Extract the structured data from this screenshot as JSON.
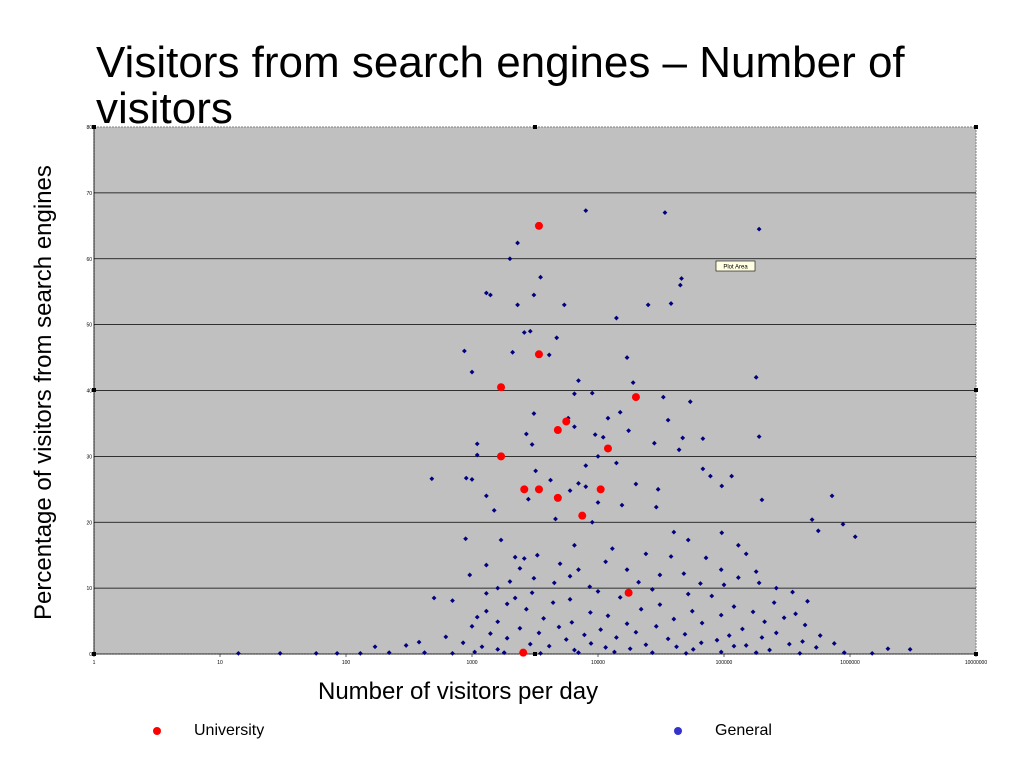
{
  "slide": {
    "title": "Visitors from search engines – Number of visitors"
  },
  "chart_data": {
    "type": "scatter",
    "xlabel": "Number of visitors per day",
    "ylabel": "Percentage of visitors from search engines",
    "xscale": "log",
    "xlim": [
      1,
      10000000
    ],
    "ylim": [
      0,
      80
    ],
    "x_tick_labels": [
      "1",
      "10",
      "100",
      "1000",
      "10000",
      "100000",
      "1000000",
      "10000000"
    ],
    "y_tick_labels": [
      "0",
      "10",
      "20",
      "30",
      "40",
      "50",
      "60",
      "70",
      "80"
    ],
    "grid": "horizontal",
    "plot_background": "#c0c0c0",
    "tooltip": "Plot Area",
    "legend_position": "bottom",
    "series": [
      {
        "name": "University",
        "color": "#ff0000",
        "points": [
          [
            3400,
            65
          ],
          [
            3400,
            45.5
          ],
          [
            1700,
            40.5
          ],
          [
            20000,
            39
          ],
          [
            5600,
            35.3
          ],
          [
            4800,
            34
          ],
          [
            12000,
            31.2
          ],
          [
            1700,
            30
          ],
          [
            2600,
            25
          ],
          [
            3400,
            25
          ],
          [
            10500,
            25
          ],
          [
            4800,
            23.7
          ],
          [
            7500,
            21
          ],
          [
            17500,
            9.3
          ],
          [
            2550,
            0.2
          ]
        ]
      },
      {
        "name": "General",
        "color": "#000080",
        "points": [
          [
            8000,
            67.3
          ],
          [
            34000,
            67
          ],
          [
            190000,
            64.5
          ],
          [
            2300,
            62.4
          ],
          [
            2000,
            60
          ],
          [
            3500,
            57.2
          ],
          [
            46000,
            57
          ],
          [
            45000,
            56
          ],
          [
            1300,
            54.8
          ],
          [
            1400,
            54.5
          ],
          [
            3100,
            54.5
          ],
          [
            2300,
            53
          ],
          [
            5400,
            53
          ],
          [
            25000,
            53
          ],
          [
            38000,
            53.2
          ],
          [
            14000,
            51
          ],
          [
            2900,
            49
          ],
          [
            2600,
            48.8
          ],
          [
            4700,
            48
          ],
          [
            870,
            46
          ],
          [
            2100,
            45.8
          ],
          [
            4100,
            45.4
          ],
          [
            17000,
            45
          ],
          [
            1000,
            42.8
          ],
          [
            180000,
            42
          ],
          [
            7000,
            41.5
          ],
          [
            19000,
            41.2
          ],
          [
            9000,
            39.6
          ],
          [
            6500,
            39.5
          ],
          [
            54000,
            38.3
          ],
          [
            33000,
            39
          ],
          [
            3100,
            36.5
          ],
          [
            15000,
            36.7
          ],
          [
            5800,
            35.8
          ],
          [
            6500,
            34.5
          ],
          [
            12000,
            35.8
          ],
          [
            36000,
            35.5
          ],
          [
            17500,
            33.9
          ],
          [
            9500,
            33.3
          ],
          [
            2700,
            33.4
          ],
          [
            11000,
            32.9
          ],
          [
            68000,
            32.7
          ],
          [
            47000,
            32.8
          ],
          [
            28000,
            32
          ],
          [
            190000,
            33
          ],
          [
            1100,
            31.9
          ],
          [
            3000,
            31.8
          ],
          [
            10000,
            30
          ],
          [
            44000,
            31
          ],
          [
            1100,
            30.2
          ],
          [
            8000,
            28.6
          ],
          [
            3200,
            27.8
          ],
          [
            14000,
            29
          ],
          [
            68000,
            28.1
          ],
          [
            78000,
            27
          ],
          [
            900,
            26.7
          ],
          [
            1000,
            26.5
          ],
          [
            4200,
            26.4
          ],
          [
            7000,
            25.9
          ],
          [
            20000,
            25.8
          ],
          [
            115000,
            27
          ],
          [
            480,
            26.6
          ],
          [
            8000,
            25.4
          ],
          [
            30000,
            25
          ],
          [
            96000,
            25.5
          ],
          [
            6000,
            24.8
          ],
          [
            1300,
            24
          ],
          [
            2800,
            23.5
          ],
          [
            10000,
            23
          ],
          [
            200000,
            23.4
          ],
          [
            15500,
            22.6
          ],
          [
            29000,
            22.3
          ],
          [
            1500,
            21.8
          ],
          [
            4600,
            20.5
          ],
          [
            9000,
            20
          ],
          [
            720000,
            24
          ],
          [
            500000,
            20.4
          ],
          [
            880000,
            19.7
          ],
          [
            40000,
            18.5
          ],
          [
            96000,
            18.4
          ],
          [
            1100000,
            17.8
          ],
          [
            560000,
            18.7
          ],
          [
            890,
            17.5
          ],
          [
            1700,
            17.3
          ],
          [
            6500,
            16.5
          ],
          [
            13000,
            16
          ],
          [
            3300,
            15
          ],
          [
            52000,
            17.3
          ],
          [
            130000,
            16.5
          ],
          [
            2200,
            14.7
          ],
          [
            2600,
            14.5
          ],
          [
            5000,
            13.7
          ],
          [
            7000,
            12.8
          ],
          [
            11500,
            14
          ],
          [
            24000,
            15.2
          ],
          [
            38000,
            14.8
          ],
          [
            72000,
            14.6
          ],
          [
            150000,
            15.2
          ],
          [
            1300,
            13.5
          ],
          [
            2400,
            13
          ],
          [
            17000,
            12.8
          ],
          [
            31000,
            12
          ],
          [
            95000,
            12.8
          ],
          [
            180000,
            12.5
          ],
          [
            960,
            12
          ],
          [
            6000,
            11.8
          ],
          [
            48000,
            12.2
          ],
          [
            130000,
            11.6
          ],
          [
            3100,
            11.5
          ],
          [
            2000,
            11
          ],
          [
            4500,
            10.8
          ],
          [
            21000,
            10.9
          ],
          [
            65000,
            10.7
          ],
          [
            100000,
            10.5
          ],
          [
            190000,
            10.8
          ],
          [
            1600,
            10
          ],
          [
            8600,
            10.2
          ],
          [
            27000,
            9.8
          ],
          [
            260000,
            10
          ],
          [
            1300,
            9.2
          ],
          [
            3000,
            9.3
          ],
          [
            10000,
            9.5
          ],
          [
            52000,
            9.1
          ],
          [
            350000,
            9.4
          ],
          [
            2200,
            8.5
          ],
          [
            6000,
            8.3
          ],
          [
            15000,
            8.6
          ],
          [
            80000,
            8.8
          ],
          [
            500,
            8.5
          ],
          [
            700,
            8.1
          ],
          [
            1900,
            7.6
          ],
          [
            4400,
            7.8
          ],
          [
            31000,
            7.5
          ],
          [
            120000,
            7.2
          ],
          [
            250000,
            7.8
          ],
          [
            460000,
            8
          ],
          [
            1300,
            6.5
          ],
          [
            2700,
            6.8
          ],
          [
            8700,
            6.3
          ],
          [
            22000,
            6.8
          ],
          [
            56000,
            6.5
          ],
          [
            170000,
            6.4
          ],
          [
            370000,
            6.1
          ],
          [
            1100,
            5.6
          ],
          [
            3700,
            5.4
          ],
          [
            12000,
            5.8
          ],
          [
            40000,
            5.3
          ],
          [
            95000,
            5.9
          ],
          [
            300000,
            5.5
          ],
          [
            1600,
            4.9
          ],
          [
            6200,
            4.8
          ],
          [
            17000,
            4.6
          ],
          [
            67000,
            4.7
          ],
          [
            210000,
            4.9
          ],
          [
            440000,
            4.4
          ],
          [
            1000,
            4.2
          ],
          [
            2400,
            3.9
          ],
          [
            4900,
            4.1
          ],
          [
            10500,
            3.7
          ],
          [
            29000,
            4.2
          ],
          [
            140000,
            3.8
          ],
          [
            1400,
            3.1
          ],
          [
            3400,
            3.2
          ],
          [
            7800,
            2.9
          ],
          [
            20000,
            3.3
          ],
          [
            49000,
            3
          ],
          [
            110000,
            2.8
          ],
          [
            260000,
            3.2
          ],
          [
            580000,
            2.8
          ],
          [
            620,
            2.6
          ],
          [
            1900,
            2.4
          ],
          [
            5600,
            2.2
          ],
          [
            14000,
            2.5
          ],
          [
            36000,
            2.3
          ],
          [
            88000,
            2.1
          ],
          [
            200000,
            2.5
          ],
          [
            420000,
            1.9
          ],
          [
            380,
            1.8
          ],
          [
            850,
            1.7
          ],
          [
            2900,
            1.5
          ],
          [
            8800,
            1.6
          ],
          [
            24000,
            1.4
          ],
          [
            66000,
            1.7
          ],
          [
            150000,
            1.3
          ],
          [
            330000,
            1.5
          ],
          [
            750000,
            1.6
          ],
          [
            170,
            1.1
          ],
          [
            300,
            1.3
          ],
          [
            1200,
            1.1
          ],
          [
            4100,
            1.2
          ],
          [
            11500,
            1
          ],
          [
            42000,
            1.1
          ],
          [
            120000,
            1.2
          ],
          [
            540000,
            1
          ],
          [
            1600,
            0.7
          ],
          [
            6500,
            0.6
          ],
          [
            18000,
            0.8
          ],
          [
            57000,
            0.7
          ],
          [
            230000,
            0.6
          ],
          [
            2000000,
            0.8
          ],
          [
            3000000,
            0.7
          ],
          [
            14,
            0.1
          ],
          [
            30,
            0.1
          ],
          [
            58,
            0.1
          ],
          [
            85,
            0.1
          ],
          [
            130,
            0.1
          ],
          [
            220,
            0.2
          ],
          [
            420,
            0.2
          ],
          [
            700,
            0.1
          ],
          [
            1050,
            0.3
          ],
          [
            1800,
            0.2
          ],
          [
            3500,
            0.1
          ],
          [
            7000,
            0.2
          ],
          [
            13500,
            0.3
          ],
          [
            27000,
            0.2
          ],
          [
            50000,
            0.1
          ],
          [
            95000,
            0.3
          ],
          [
            180000,
            0.2
          ],
          [
            400000,
            0.1
          ],
          [
            900000,
            0.2
          ],
          [
            1500000,
            0.1
          ]
        ]
      }
    ]
  },
  "legend": {
    "items": [
      {
        "label": "University",
        "color": "#ff0000"
      },
      {
        "label": "General",
        "color": "#3333cc"
      }
    ]
  }
}
